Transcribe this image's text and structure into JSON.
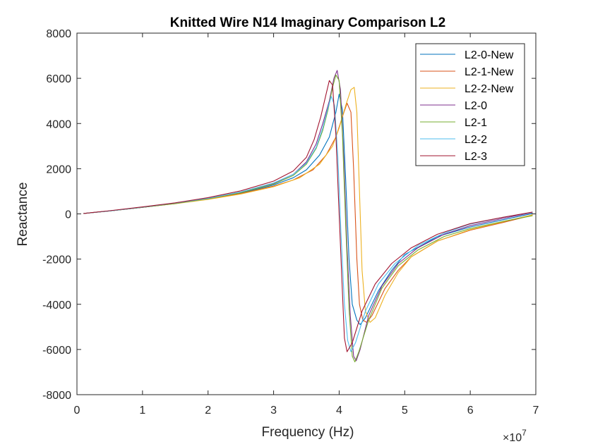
{
  "chart_data": {
    "type": "line",
    "title": "Knitted Wire N14 Imaginary Comparison L2",
    "xlabel": "Frequency (Hz)",
    "ylabel": "Reactance",
    "x_exponent_label": "×10",
    "x_exponent_power": "7",
    "xlim": [
      0,
      7
    ],
    "ylim": [
      -8000,
      8000
    ],
    "x_scale_note": "x tick values are in units of 10^7 Hz",
    "xticks": [
      "0",
      "1",
      "2",
      "3",
      "4",
      "5",
      "6",
      "7"
    ],
    "yticks": [
      "-8000",
      "-6000",
      "-4000",
      "-2000",
      "0",
      "2000",
      "4000",
      "6000",
      "8000"
    ],
    "grid": false,
    "legend_position": "top-right",
    "series": [
      {
        "name": "L2-0-New",
        "color": "#0072BD",
        "points": [
          [
            0.1,
            20
          ],
          [
            0.5,
            130
          ],
          [
            1.0,
            290
          ],
          [
            1.5,
            460
          ],
          [
            2.0,
            660
          ],
          [
            2.5,
            920
          ],
          [
            3.0,
            1280
          ],
          [
            3.3,
            1600
          ],
          [
            3.5,
            1950
          ],
          [
            3.7,
            2600
          ],
          [
            3.85,
            3400
          ],
          [
            3.95,
            4500
          ],
          [
            4.0,
            5300
          ],
          [
            4.05,
            4600
          ],
          [
            4.1,
            1500
          ],
          [
            4.15,
            -2000
          ],
          [
            4.2,
            -4000
          ],
          [
            4.27,
            -4700
          ],
          [
            4.32,
            -4900
          ],
          [
            4.4,
            -4600
          ],
          [
            4.6,
            -3400
          ],
          [
            4.8,
            -2500
          ],
          [
            5.0,
            -1800
          ],
          [
            5.5,
            -1000
          ],
          [
            6.0,
            -580
          ],
          [
            6.5,
            -260
          ],
          [
            6.95,
            20
          ]
        ]
      },
      {
        "name": "L2-1-New",
        "color": "#D95319",
        "points": [
          [
            0.1,
            20
          ],
          [
            0.5,
            130
          ],
          [
            1.0,
            290
          ],
          [
            1.5,
            460
          ],
          [
            2.0,
            660
          ],
          [
            2.5,
            900
          ],
          [
            3.0,
            1230
          ],
          [
            3.3,
            1500
          ],
          [
            3.6,
            1950
          ],
          [
            3.8,
            2600
          ],
          [
            3.95,
            3400
          ],
          [
            4.05,
            4300
          ],
          [
            4.12,
            4900
          ],
          [
            4.18,
            4500
          ],
          [
            4.22,
            2000
          ],
          [
            4.27,
            -2000
          ],
          [
            4.31,
            -4000
          ],
          [
            4.36,
            -4700
          ],
          [
            4.42,
            -4800
          ],
          [
            4.5,
            -4500
          ],
          [
            4.7,
            -3300
          ],
          [
            4.9,
            -2500
          ],
          [
            5.1,
            -1900
          ],
          [
            5.5,
            -1200
          ],
          [
            6.0,
            -720
          ],
          [
            6.5,
            -380
          ],
          [
            6.95,
            -60
          ]
        ]
      },
      {
        "name": "L2-2-New",
        "color": "#EDB120",
        "points": [
          [
            0.1,
            20
          ],
          [
            0.5,
            130
          ],
          [
            1.0,
            290
          ],
          [
            1.5,
            450
          ],
          [
            2.0,
            640
          ],
          [
            2.5,
            880
          ],
          [
            3.0,
            1200
          ],
          [
            3.4,
            1600
          ],
          [
            3.7,
            2200
          ],
          [
            3.9,
            3000
          ],
          [
            4.0,
            3800
          ],
          [
            4.1,
            4800
          ],
          [
            4.18,
            5500
          ],
          [
            4.23,
            5600
          ],
          [
            4.27,
            4500
          ],
          [
            4.31,
            1000
          ],
          [
            4.35,
            -2500
          ],
          [
            4.4,
            -4300
          ],
          [
            4.47,
            -4800
          ],
          [
            4.55,
            -4600
          ],
          [
            4.7,
            -3600
          ],
          [
            4.9,
            -2600
          ],
          [
            5.1,
            -1900
          ],
          [
            5.5,
            -1200
          ],
          [
            6.0,
            -700
          ],
          [
            6.5,
            -350
          ],
          [
            6.95,
            -40
          ]
        ]
      },
      {
        "name": "L2-0",
        "color": "#7E2F8E",
        "points": [
          [
            0.1,
            20
          ],
          [
            0.5,
            130
          ],
          [
            1.0,
            290
          ],
          [
            1.5,
            470
          ],
          [
            2.0,
            680
          ],
          [
            2.5,
            960
          ],
          [
            3.0,
            1350
          ],
          [
            3.3,
            1750
          ],
          [
            3.5,
            2300
          ],
          [
            3.65,
            3100
          ],
          [
            3.75,
            4000
          ],
          [
            3.85,
            5000
          ],
          [
            3.92,
            6000
          ],
          [
            3.97,
            6350
          ],
          [
            4.02,
            5500
          ],
          [
            4.07,
            2500
          ],
          [
            4.12,
            -1500
          ],
          [
            4.17,
            -4500
          ],
          [
            4.22,
            -6300
          ],
          [
            4.26,
            -6500
          ],
          [
            4.32,
            -6000
          ],
          [
            4.45,
            -4500
          ],
          [
            4.65,
            -3200
          ],
          [
            4.9,
            -2200
          ],
          [
            5.2,
            -1500
          ],
          [
            5.6,
            -900
          ],
          [
            6.0,
            -520
          ],
          [
            6.5,
            -200
          ],
          [
            6.95,
            60
          ]
        ]
      },
      {
        "name": "L2-1",
        "color": "#77AC30",
        "points": [
          [
            0.1,
            20
          ],
          [
            0.5,
            130
          ],
          [
            1.0,
            290
          ],
          [
            1.5,
            460
          ],
          [
            2.0,
            670
          ],
          [
            2.5,
            940
          ],
          [
            3.0,
            1320
          ],
          [
            3.3,
            1700
          ],
          [
            3.5,
            2200
          ],
          [
            3.65,
            2900
          ],
          [
            3.75,
            3700
          ],
          [
            3.83,
            4600
          ],
          [
            3.9,
            5600
          ],
          [
            3.95,
            6150
          ],
          [
            4.0,
            5900
          ],
          [
            4.05,
            3500
          ],
          [
            4.1,
            -500
          ],
          [
            4.15,
            -4200
          ],
          [
            4.2,
            -6300
          ],
          [
            4.24,
            -6550
          ],
          [
            4.3,
            -6100
          ],
          [
            4.45,
            -4700
          ],
          [
            4.65,
            -3300
          ],
          [
            4.9,
            -2300
          ],
          [
            5.2,
            -1600
          ],
          [
            5.6,
            -1000
          ],
          [
            6.0,
            -650
          ],
          [
            6.5,
            -330
          ],
          [
            6.95,
            -80
          ]
        ]
      },
      {
        "name": "L2-2",
        "color": "#4DBEEE",
        "points": [
          [
            0.1,
            20
          ],
          [
            0.5,
            130
          ],
          [
            1.0,
            300
          ],
          [
            1.5,
            480
          ],
          [
            2.0,
            690
          ],
          [
            2.5,
            970
          ],
          [
            3.0,
            1370
          ],
          [
            3.3,
            1750
          ],
          [
            3.5,
            2250
          ],
          [
            3.65,
            2950
          ],
          [
            3.75,
            3800
          ],
          [
            3.83,
            4700
          ],
          [
            3.88,
            5200
          ],
          [
            3.93,
            4800
          ],
          [
            3.98,
            2500
          ],
          [
            4.03,
            -1000
          ],
          [
            4.08,
            -4000
          ],
          [
            4.13,
            -5600
          ],
          [
            4.18,
            -6100
          ],
          [
            4.25,
            -5700
          ],
          [
            4.4,
            -4300
          ],
          [
            4.6,
            -3100
          ],
          [
            4.85,
            -2200
          ],
          [
            5.2,
            -1400
          ],
          [
            5.6,
            -850
          ],
          [
            6.0,
            -450
          ],
          [
            6.5,
            -150
          ],
          [
            6.95,
            70
          ]
        ]
      },
      {
        "name": "L2-3",
        "color": "#A2142F",
        "points": [
          [
            0.1,
            20
          ],
          [
            0.5,
            140
          ],
          [
            1.0,
            310
          ],
          [
            1.5,
            490
          ],
          [
            2.0,
            720
          ],
          [
            2.5,
            1020
          ],
          [
            3.0,
            1450
          ],
          [
            3.3,
            1900
          ],
          [
            3.5,
            2500
          ],
          [
            3.62,
            3300
          ],
          [
            3.72,
            4300
          ],
          [
            3.8,
            5300
          ],
          [
            3.85,
            5900
          ],
          [
            3.9,
            5700
          ],
          [
            3.95,
            3500
          ],
          [
            4.0,
            0
          ],
          [
            4.05,
            -3500
          ],
          [
            4.08,
            -5500
          ],
          [
            4.12,
            -6100
          ],
          [
            4.2,
            -5700
          ],
          [
            4.35,
            -4300
          ],
          [
            4.55,
            -3100
          ],
          [
            4.8,
            -2200
          ],
          [
            5.1,
            -1500
          ],
          [
            5.5,
            -900
          ],
          [
            6.0,
            -430
          ],
          [
            6.5,
            -150
          ],
          [
            6.95,
            80
          ]
        ]
      }
    ]
  }
}
